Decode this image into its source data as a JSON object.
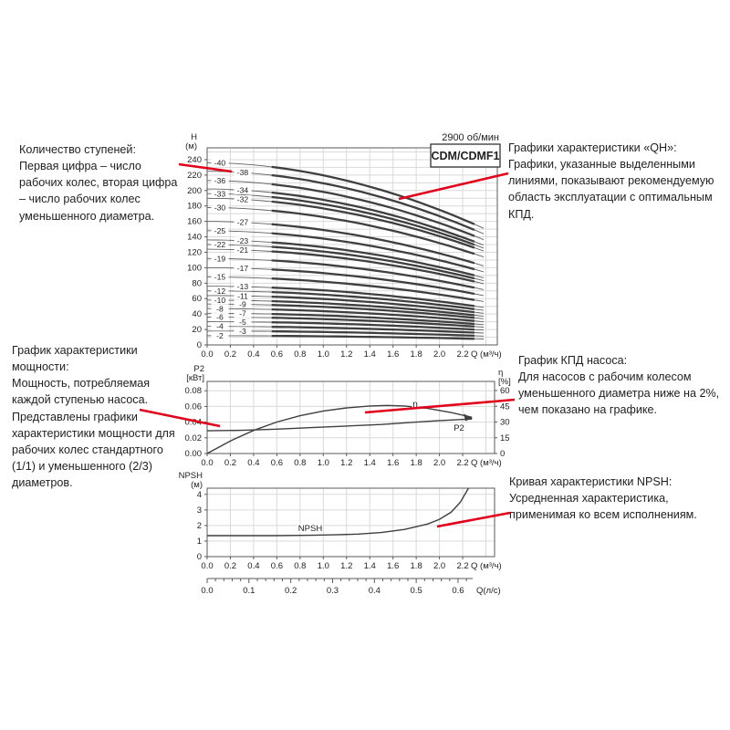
{
  "colors": {
    "red": "#e2001a",
    "curve": "#3f3f3f",
    "curve_thin": "#606060",
    "grid": "#d9d9d9",
    "border": "#5a5a5a",
    "text": "#222222"
  },
  "annotations": {
    "stages": {
      "title": "Количество ступеней:",
      "body": "Первая цифра – число рабочих колес, вторая цифра – число рабочих колес уменьшенного диаметра."
    },
    "qh": {
      "title": "Графики характеристики «QH»:",
      "body": "Графики, указанные выделенными линиями, показывают рекомендуемую область эксплуатации с оптимальным КПД."
    },
    "power": {
      "title": "График характеристики мощности:",
      "body": "Мощность, потребляемая каждой ступенью насоса. Представлены графики характеристики мощности для рабочих колес стандартного (1/1) и уменьшенного (2/3) диаметров."
    },
    "efficiency": {
      "title": "График КПД насоса:",
      "body": "Для насосов с рабочим колесом уменьшенного диаметра ниже на 2%, чем показано на графике."
    },
    "npsh": {
      "title": "Кривая характеристики NPSH:",
      "body": "Усредненная характеристика, применимая ко всем исполнениям."
    }
  },
  "pointer_lines": [
    {
      "name": "stages-pointer",
      "from": [
        196,
        180
      ],
      "to": [
        254,
        188
      ]
    },
    {
      "name": "qh-pointer",
      "from": [
        557,
        190
      ],
      "to": [
        437,
        218
      ]
    },
    {
      "name": "power-pointer",
      "from": [
        153,
        449
      ],
      "to": [
        241,
        467
      ]
    },
    {
      "name": "efficiency-pointer",
      "from": [
        564,
        438
      ],
      "to": [
        400,
        452
      ]
    },
    {
      "name": "npsh-pointer",
      "from": [
        559,
        562
      ],
      "to": [
        479,
        577
      ]
    }
  ],
  "chart_data": [
    {
      "id": "qh",
      "type": "line",
      "title": "2900 об/мин",
      "box_label": "CDM/CDMF1",
      "xlabel": "Q (м³/ч)",
      "ylabel_lines": [
        "H",
        "(м)"
      ],
      "xticks": [
        0.0,
        0.2,
        0.4,
        0.6,
        0.8,
        1.0,
        1.2,
        1.4,
        1.6,
        1.8,
        2.0,
        2.2
      ],
      "yticks": [
        0,
        20,
        40,
        60,
        80,
        100,
        120,
        140,
        160,
        180,
        200,
        220,
        240
      ],
      "xlim": [
        0,
        2.5
      ],
      "ylim": [
        0,
        255
      ],
      "grid": true,
      "q_max": 2.38,
      "recommended_q": [
        0.5,
        2.36
      ],
      "droop_ratio": 0.36,
      "droop_exp": 1.9,
      "curves": [
        {
          "label": "-40",
          "h0": 236,
          "col": 0
        },
        {
          "label": "-38",
          "h0": 225,
          "col": 1
        },
        {
          "label": "-36",
          "h0": 213,
          "col": 0
        },
        {
          "label": "-34",
          "h0": 202,
          "col": 1
        },
        {
          "label": "-33",
          "h0": 196,
          "col": 0
        },
        {
          "label": "-32",
          "h0": 190,
          "col": 1
        },
        {
          "label": "-30",
          "h0": 178,
          "col": 0
        },
        {
          "label": "-27",
          "h0": 160,
          "col": 1
        },
        {
          "label": "-25",
          "h0": 148,
          "col": 0
        },
        {
          "label": "-23",
          "h0": 136,
          "col": 1
        },
        {
          "label": "-22",
          "h0": 130,
          "col": 0
        },
        {
          "label": "-21",
          "h0": 124,
          "col": 1
        },
        {
          "label": "-19",
          "h0": 112,
          "col": 0
        },
        {
          "label": "-17",
          "h0": 100,
          "col": 1
        },
        {
          "label": "-15",
          "h0": 88,
          "col": 0
        },
        {
          "label": "-13",
          "h0": 76,
          "col": 1
        },
        {
          "label": "-12",
          "h0": 70,
          "col": 0
        },
        {
          "label": "-11",
          "h0": 64,
          "col": 1
        },
        {
          "label": "-10",
          "h0": 58,
          "col": 0
        },
        {
          "label": "-9",
          "h0": 53,
          "col": 1
        },
        {
          "label": "-8",
          "h0": 47,
          "col": 0
        },
        {
          "label": "-7",
          "h0": 41,
          "col": 1
        },
        {
          "label": "-6",
          "h0": 36,
          "col": 0
        },
        {
          "label": "-5",
          "h0": 30,
          "col": 1
        },
        {
          "label": "-4",
          "h0": 24,
          "col": 0
        },
        {
          "label": "-3",
          "h0": 18,
          "col": 1
        },
        {
          "label": "-2",
          "h0": 12,
          "col": 0
        }
      ]
    },
    {
      "id": "power",
      "type": "line",
      "xlabel": "Q (м³/ч)",
      "ylabel_left_lines": [
        "P2",
        "[кВт]"
      ],
      "ylabel_right_lines": [
        "η",
        "[%]"
      ],
      "xticks": [
        0.0,
        0.2,
        0.4,
        0.6,
        0.8,
        1.0,
        1.2,
        1.4,
        1.6,
        1.8,
        2.0,
        2.2
      ],
      "yticks_left": [
        0.0,
        0.02,
        0.04,
        0.06,
        0.08
      ],
      "yticks_right": [
        0,
        15,
        30,
        45,
        60
      ],
      "ylim_left": [
        0,
        0.092
      ],
      "ylim_right": [
        0,
        69
      ],
      "grid": true,
      "series": [
        {
          "name": "P2",
          "axis": "left",
          "x": [
            0,
            0.3,
            0.6,
            0.9,
            1.2,
            1.5,
            1.8,
            2.0,
            2.28
          ],
          "y": [
            0.029,
            0.0295,
            0.031,
            0.033,
            0.035,
            0.037,
            0.04,
            0.042,
            0.044
          ]
        },
        {
          "name": "η",
          "axis": "right",
          "x": [
            0,
            0.2,
            0.4,
            0.6,
            0.8,
            1.0,
            1.2,
            1.4,
            1.55,
            1.7,
            1.9,
            2.1,
            2.28
          ],
          "y": [
            0,
            12,
            22,
            30,
            36,
            40.5,
            43.5,
            45.3,
            45.8,
            45.3,
            43,
            39,
            34.5
          ]
        }
      ]
    },
    {
      "id": "npsh",
      "type": "line",
      "xlabel": "Q (м³/ч)",
      "xlabel_secondary": "Q(л/с)",
      "ylabel_lines": [
        "NPSH",
        "(м)"
      ],
      "xticks": [
        0.0,
        0.2,
        0.4,
        0.6,
        0.8,
        1.0,
        1.2,
        1.4,
        1.6,
        1.8,
        2.0,
        2.2
      ],
      "xticks_secondary": [
        0.0,
        0.1,
        0.2,
        0.3,
        0.4,
        0.5,
        0.6
      ],
      "yticks": [
        0,
        1,
        2,
        3,
        4
      ],
      "ylim": [
        0,
        4.4
      ],
      "grid": true,
      "series": [
        {
          "name": "NPSH",
          "x": [
            0,
            0.6,
            0.9,
            1.1,
            1.3,
            1.5,
            1.7,
            1.9,
            2.0,
            2.1,
            2.18,
            2.25
          ],
          "y": [
            1.35,
            1.35,
            1.37,
            1.4,
            1.45,
            1.55,
            1.75,
            2.1,
            2.4,
            2.85,
            3.5,
            4.4
          ]
        }
      ]
    }
  ]
}
